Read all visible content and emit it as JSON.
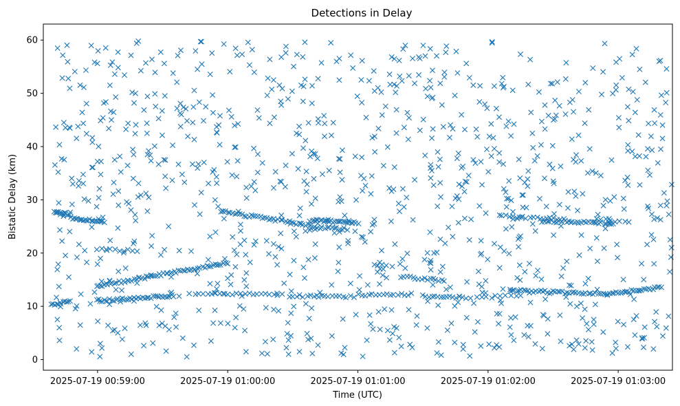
{
  "chart_data": {
    "type": "scatter",
    "title": "Detections in Delay",
    "xlabel": "Time (UTC)",
    "ylabel": "Bistatic Delay (km)",
    "marker": "x",
    "color": "#1f77b4",
    "xlim": [
      "2025-07-19 00:58:35",
      "2025-07-19 01:03:25"
    ],
    "ylim": [
      -2,
      63
    ],
    "x_ticks": [
      "2025-07-19 00:59:00",
      "2025-07-19 01:00:00",
      "2025-07-19 01:01:00",
      "2025-07-19 01:02:00",
      "2025-07-19 01:03:00"
    ],
    "y_ticks": [
      0,
      10,
      20,
      30,
      40,
      50,
      60
    ],
    "grid": false,
    "clutter_extent": {
      "x_start": "2025-07-19 00:58:40",
      "x_end": "2025-07-19 01:03:25",
      "y_min": 0.5,
      "y_max": 60,
      "count": 1050
    },
    "tracks": [
      {
        "x_start": "2025-07-19 00:58:40",
        "x_end": "2025-07-19 00:58:47",
        "y_start": 27.6,
        "y_end": 27.3,
        "count": 14
      },
      {
        "x_start": "2025-07-19 00:58:48",
        "x_end": "2025-07-19 00:59:03",
        "y_start": 26.6,
        "y_end": 25.8,
        "count": 22
      },
      {
        "x_start": "2025-07-19 00:58:39",
        "x_end": "2025-07-19 00:58:47",
        "y_start": 10.4,
        "y_end": 10.9,
        "count": 12
      },
      {
        "x_start": "2025-07-19 00:59:00",
        "x_end": "2025-07-19 01:00:00",
        "y_start": 13.8,
        "y_end": 18.2,
        "count": 62
      },
      {
        "x_start": "2025-07-19 00:59:00",
        "x_end": "2025-07-19 00:59:35",
        "y_start": 11.0,
        "y_end": 12.0,
        "count": 38
      },
      {
        "x_start": "2025-07-19 00:59:00",
        "x_end": "2025-07-19 00:59:18",
        "y_start": 20.7,
        "y_end": 20.4,
        "count": 10
      },
      {
        "x_start": "2025-07-19 00:59:57",
        "x_end": "2025-07-19 01:00:38",
        "y_start": 27.8,
        "y_end": 25.2,
        "count": 40
      },
      {
        "x_start": "2025-07-19 00:59:45",
        "x_end": "2025-07-19 01:00:25",
        "y_start": 12.3,
        "y_end": 12.2,
        "count": 22
      },
      {
        "x_start": "2025-07-19 01:00:38",
        "x_end": "2025-07-19 01:01:00",
        "y_start": 26.2,
        "y_end": 25.6,
        "count": 30
      },
      {
        "x_start": "2025-07-19 01:00:40",
        "x_end": "2025-07-19 01:00:55",
        "y_start": 24.8,
        "y_end": 24.5,
        "count": 14
      },
      {
        "x_start": "2025-07-19 01:00:30",
        "x_end": "2025-07-19 01:00:58",
        "y_start": 12.0,
        "y_end": 11.8,
        "count": 18
      },
      {
        "x_start": "2025-07-19 01:01:00",
        "x_end": "2025-07-19 01:01:25",
        "y_start": 12.1,
        "y_end": 12.3,
        "count": 16
      },
      {
        "x_start": "2025-07-19 01:01:20",
        "x_end": "2025-07-19 01:01:40",
        "y_start": 15.6,
        "y_end": 14.8,
        "count": 16
      },
      {
        "x_start": "2025-07-19 01:01:30",
        "x_end": "2025-07-19 01:01:48",
        "y_start": 12.0,
        "y_end": 11.7,
        "count": 14
      },
      {
        "x_start": "2025-07-19 01:01:50",
        "x_end": "2025-07-19 01:02:15",
        "y_start": 11.5,
        "y_end": 12.0,
        "count": 12
      },
      {
        "x_start": "2025-07-19 01:02:05",
        "x_end": "2025-07-19 01:02:35",
        "y_start": 27.0,
        "y_end": 26.3,
        "count": 20
      },
      {
        "x_start": "2025-07-19 01:02:25",
        "x_end": "2025-07-19 01:02:58",
        "y_start": 26.0,
        "y_end": 25.6,
        "count": 30
      },
      {
        "x_start": "2025-07-19 01:02:10",
        "x_end": "2025-07-19 01:02:55",
        "y_start": 13.0,
        "y_end": 12.3,
        "count": 42
      },
      {
        "x_start": "2025-07-19 01:02:55",
        "x_end": "2025-07-19 01:03:20",
        "y_start": 12.3,
        "y_end": 13.6,
        "count": 26
      },
      {
        "x_start": "2025-07-19 01:02:50",
        "x_end": "2025-07-19 01:03:05",
        "y_start": 26.3,
        "y_end": 25.9,
        "count": 8
      }
    ]
  }
}
